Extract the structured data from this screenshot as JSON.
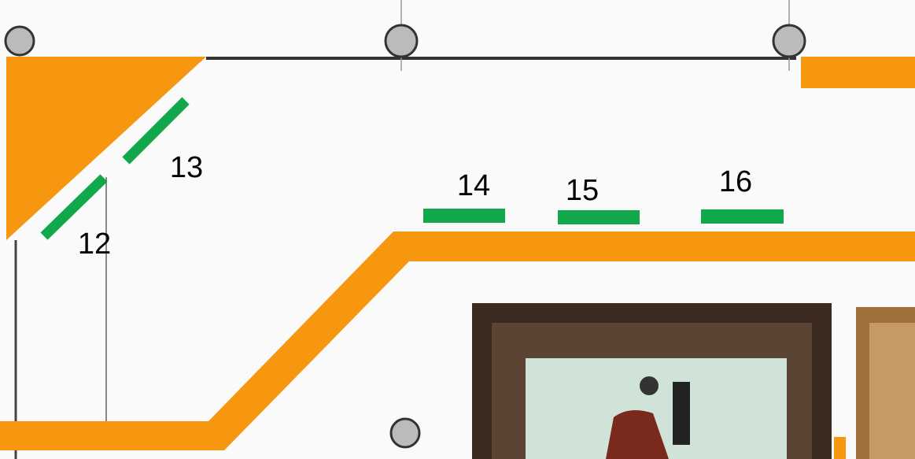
{
  "labels": [
    "12",
    "13",
    "14",
    "15",
    "16"
  ]
}
